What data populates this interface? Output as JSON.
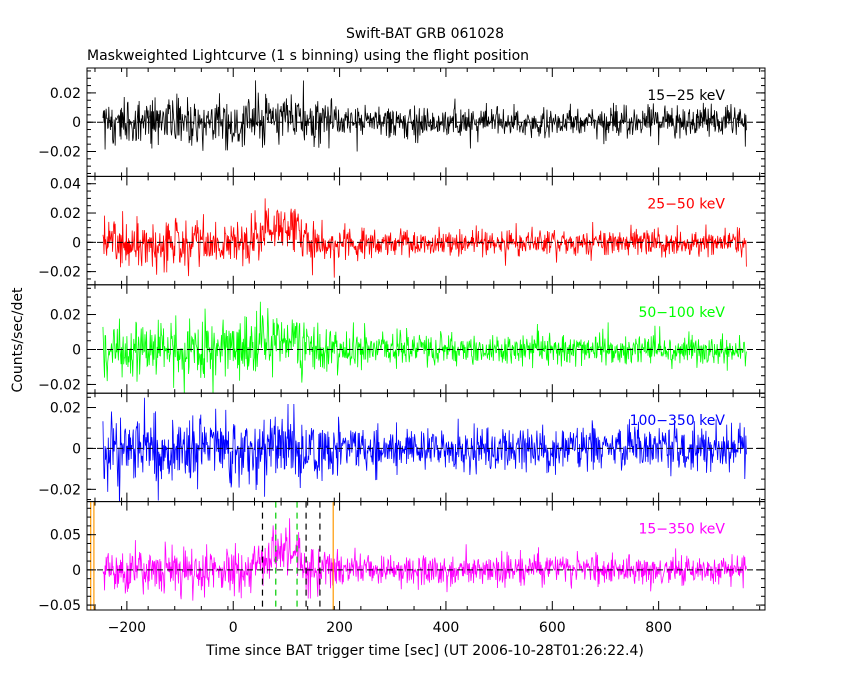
{
  "chart_data": {
    "type": "line",
    "title": "Swift-BAT GRB 061028",
    "subtitle": "Maskweighted Lightcurve (1 s binning) using the flight position",
    "xlabel": "Time since BAT trigger time [sec] (UT 2006-10-28T01:26:22.4)",
    "ylabel": "Counts/sec/det",
    "xlim": [
      -275,
      1000
    ],
    "x_ticks": [
      -200,
      0,
      200,
      400,
      600,
      800
    ],
    "x_tick_labels": [
      "−200",
      "0",
      "200",
      "400",
      "600",
      "800"
    ],
    "x_data_range": [
      -245,
      965
    ],
    "panels": [
      {
        "label": "15−25 keV",
        "color": "#000000",
        "ylim": [
          -0.037,
          0.037
        ],
        "yticks": [
          -0.02,
          0,
          0.02
        ],
        "ytick_labels": [
          "−0.02",
          "0",
          "0.02"
        ],
        "noise_early": 0.0085,
        "noise_late": 0.0055,
        "burst_start": 40,
        "burst_end": 125,
        "burst_peak": 0.006
      },
      {
        "label": "25−50 keV",
        "color": "#ff0000",
        "ylim": [
          -0.029,
          0.045
        ],
        "yticks": [
          -0.02,
          0,
          0.02,
          0.04
        ],
        "ytick_labels": [
          "−0.02",
          "0",
          "0.02",
          "0.04"
        ],
        "noise_early": 0.008,
        "noise_late": 0.005,
        "burst_start": 40,
        "burst_end": 125,
        "burst_peak": 0.012
      },
      {
        "label": "50−100 keV",
        "color": "#00ff00",
        "ylim": [
          -0.025,
          0.037
        ],
        "yticks": [
          -0.02,
          0,
          0.02
        ],
        "ytick_labels": [
          "−0.02",
          "0",
          "0.02"
        ],
        "noise_early": 0.0075,
        "noise_late": 0.0048,
        "burst_start": 50,
        "burst_end": 125,
        "burst_peak": 0.008
      },
      {
        "label": "100−350 keV",
        "color": "#0000ff",
        "ylim": [
          -0.026,
          0.027
        ],
        "yticks": [
          -0.02,
          0,
          0.02
        ],
        "ytick_labels": [
          "−0.02",
          "0",
          "0.02"
        ],
        "noise_early": 0.0085,
        "noise_late": 0.0055,
        "burst_start": 60,
        "burst_end": 120,
        "burst_peak": 0.003
      },
      {
        "label": "15−350 keV",
        "color": "#ff00ff",
        "ylim": [
          -0.057,
          0.097
        ],
        "yticks": [
          -0.05,
          0,
          0.05
        ],
        "ytick_labels": [
          "−0.05",
          "0",
          "0.05"
        ],
        "noise_early": 0.017,
        "noise_late": 0.011,
        "burst_start": 40,
        "burst_end": 125,
        "burst_peak": 0.03
      }
    ],
    "markers": [
      {
        "x": -268,
        "color": "#ff9900",
        "style": "solid"
      },
      {
        "x": -262,
        "color": "#ff9900",
        "style": "solid"
      },
      {
        "x": 55,
        "color": "#000000",
        "style": "dashed"
      },
      {
        "x": 80,
        "color": "#00cc00",
        "style": "dashed"
      },
      {
        "x": 120,
        "color": "#00cc00",
        "style": "dashed"
      },
      {
        "x": 137,
        "color": "#000000",
        "style": "dashed"
      },
      {
        "x": 163,
        "color": "#000000",
        "style": "dashed"
      },
      {
        "x": 188,
        "color": "#ff9900",
        "style": "solid"
      }
    ],
    "legend": "per-panel label at top-right",
    "grid": false
  }
}
